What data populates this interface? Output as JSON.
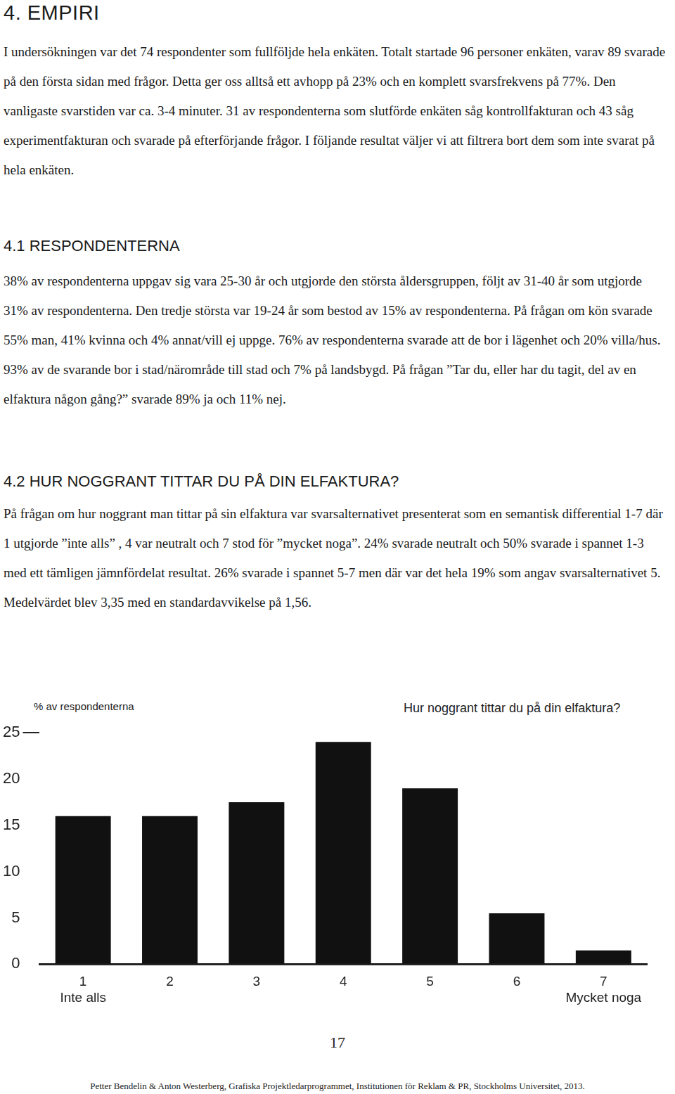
{
  "page": {
    "heading": "4. EMPIRI",
    "intro": "I undersökningen var det 74 respondenter som fullföljde hela enkäten. Totalt startade 96 personer enkäten, varav 89 svarade på den första sidan med frågor. Detta ger oss alltså ett avhopp på 23% och en komplett svarsfrekvens på 77%. Den vanligaste svarstiden var ca. 3-4 minuter. 31 av respondenterna som slutförde enkäten såg kontrollfakturan och 43 såg experimentfakturan och svarade på efterförjande frågor. I följande resultat väljer vi att filtrera bort dem som inte svarat på hela enkäten.",
    "sections": [
      {
        "heading": "4.1 RESPONDENTERNA",
        "text": "38% av respondenterna uppgav sig vara 25-30 år och utgjorde den största åldersgruppen, följt av 31-40 år som utgjorde 31% av respondenterna. Den tredje största var 19-24 år som bestod av 15% av respondenterna. På frågan om kön svarade 55% man, 41% kvinna och 4% annat/vill ej uppge. 76% av respondenterna svarade att de bor i lägenhet och 20% villa/hus. 93% av de svarande bor i stad/närområde till stad och 7% på landsbygd. På frågan ”Tar du, eller har du tagit, del av en elfaktura någon gång?” svarade 89% ja och 11% nej."
      },
      {
        "heading": "4.2 HUR NOGGRANT TITTAR DU PÅ DIN ELFAKTURA?",
        "text": "På frågan om hur noggrant man tittar på sin elfaktura var svarsalternativet presenterat som en semantisk differential 1-7 där 1 utgjorde ”inte alls” , 4 var neutralt och 7 stod för ”mycket noga”. 24% svarade neutralt och 50% svarade i spannet 1-3 med ett tämligen jämnfördelat resultat. 26% svarade i spannet 5-7 men där var det hela 19% som angav svarsalternativet 5. Medelvärdet blev 3,35 med en standardavvikelse på 1,56."
      }
    ],
    "page_number": "17",
    "footer": "Petter Bendelin & Anton Westerberg, Grafiska Projektledarprogrammet, Institutionen för Reklam & PR, Stockholms Universitet, 2013."
  },
  "chart_data": {
    "type": "bar",
    "title": "Hur noggrant tittar du på din elfaktura?",
    "ylabel": "% av respondenterna",
    "categories": [
      [
        "1",
        "Inte alls"
      ],
      "2",
      "3",
      "4",
      "5",
      "6",
      [
        "7",
        "Mycket noga"
      ]
    ],
    "values": [
      16,
      16,
      17.5,
      24,
      19,
      5.5,
      1.5
    ],
    "color": "#111111",
    "ylim": [
      0,
      25
    ],
    "yticks": [
      0,
      5,
      10,
      15,
      20,
      25
    ],
    "grid": false
  }
}
